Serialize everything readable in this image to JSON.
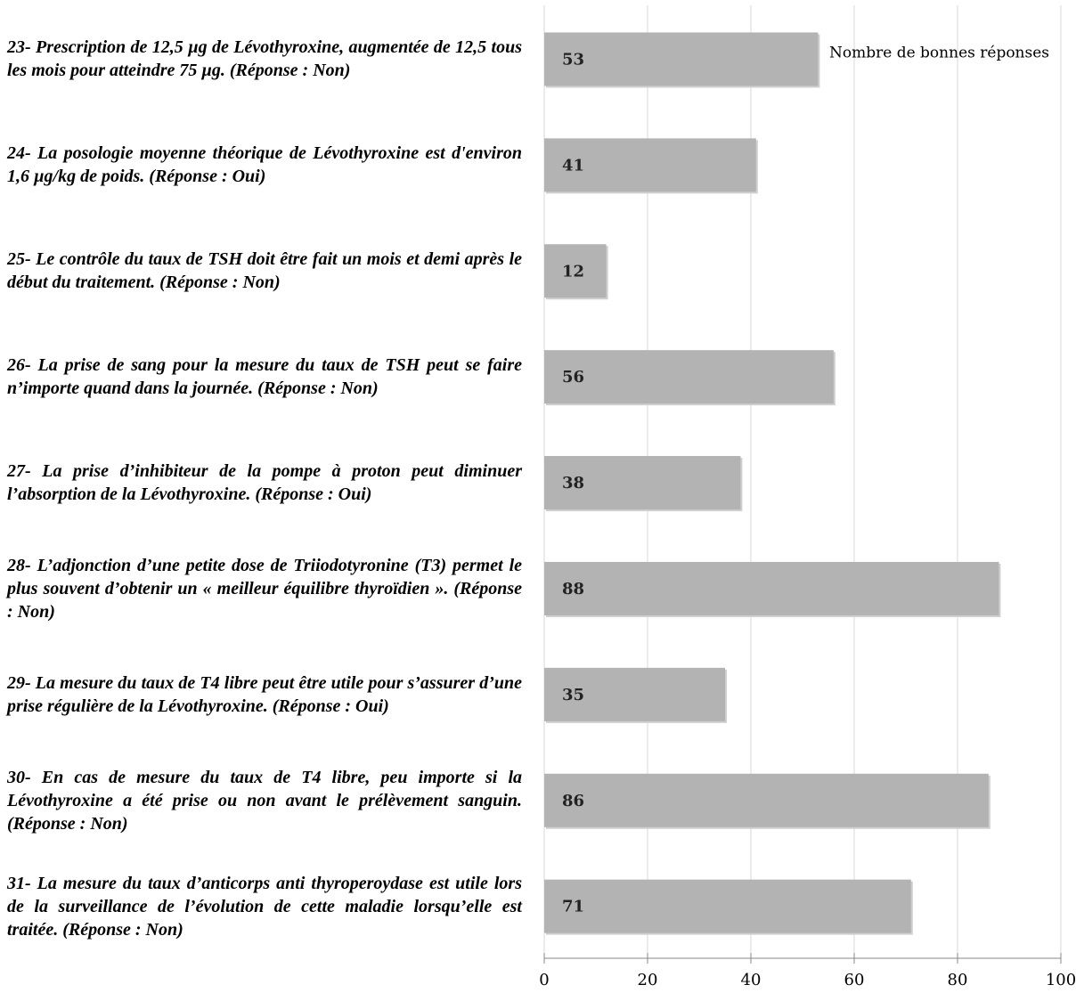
{
  "chart_data": {
    "type": "bar",
    "orientation": "horizontal",
    "categories": [
      "23- Prescription de 12,5 µg de Lévothyroxine, augmentée de 12,5 tous les mois pour atteindre 75 µg. (Réponse : Non)",
      "24- La posologie moyenne théorique de Lévothyroxine est d'environ 1,6 µg/kg de poids. (Réponse : Oui)",
      "25- Le contrôle du taux de TSH doit être fait un mois et demi après le début du traitement. (Réponse : Non)",
      "26- La prise de sang pour la mesure du taux de TSH peut se faire n’importe quand dans la journée. (Réponse : Non)",
      "27- La prise d’inhibiteur de la pompe à proton peut diminuer l’absorption de la Lévothyroxine. (Réponse : Oui)",
      "28- L’adjonction d’une petite dose de Triiodotyronine (T3) permet le plus souvent d’obtenir un « meilleur équilibre thyroïdien ». (Réponse : Non)",
      "29- La mesure du taux de T4 libre peut être utile pour s’assurer d’une prise régulière de la Lévothyroxine. (Réponse : Oui)",
      "30- En cas de mesure du taux de T4 libre, peu importe si la Lévothyroxine a été prise ou non avant le prélèvement sanguin. (Réponse : Non)",
      "31- La mesure du taux d’anticorps anti thyroperoydase est utile lors de la surveillance de l’évolution de cette maladie lorsqu’elle est traitée. (Réponse : Non)"
    ],
    "series": [
      {
        "name": "Nombre de bonnes réponses",
        "color": "#b3b3b3",
        "values": [
          53,
          41,
          12,
          56,
          38,
          88,
          35,
          86,
          71
        ]
      }
    ],
    "xlim": [
      0,
      100
    ],
    "xticks": [
      0,
      20,
      40,
      60,
      80,
      100
    ],
    "grid": true
  }
}
